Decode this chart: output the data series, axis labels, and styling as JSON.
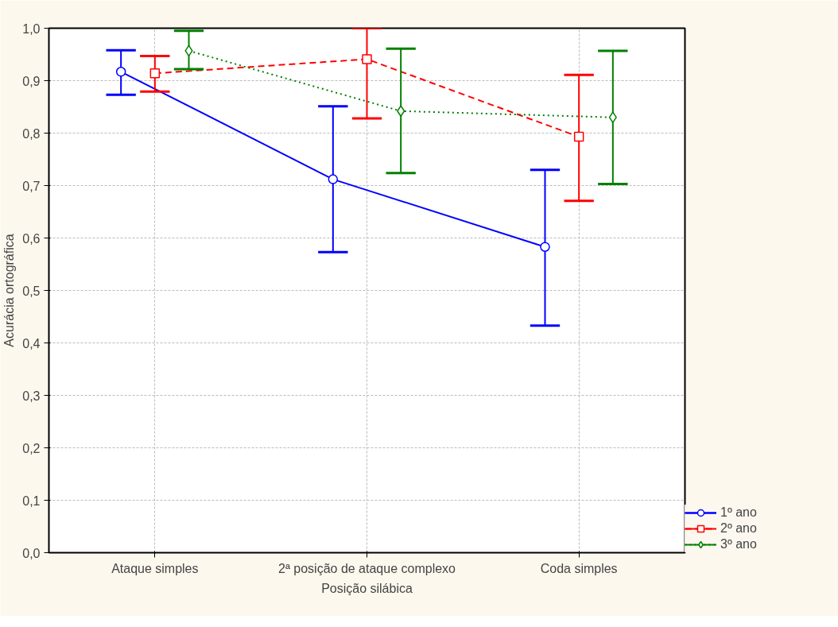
{
  "chart_data": {
    "type": "line",
    "xlabel": "Posição silábica",
    "ylabel": "Acurácia ortográfica",
    "categories": [
      "Ataque simples",
      "2ª posição de ataque complexo",
      "Coda simples"
    ],
    "series": [
      {
        "name": "1º ano",
        "color": "#0000ff",
        "marker": "circle",
        "line_style": "solid",
        "values": [
          0.917,
          0.712,
          0.583
        ],
        "errors": [
          [
            0.873,
            0.958
          ],
          [
            0.573,
            0.851
          ],
          [
            0.433,
            0.73
          ]
        ]
      },
      {
        "name": "2º ano",
        "color": "#ff0000",
        "marker": "square",
        "line_style": "dashed",
        "values": [
          0.914,
          0.941,
          0.793
        ],
        "errors": [
          [
            0.879,
            0.947
          ],
          [
            0.828,
            1.0
          ],
          [
            0.671,
            0.911
          ]
        ]
      },
      {
        "name": "3º ano",
        "color": "#008000",
        "marker": "diamond",
        "line_style": "dotted",
        "values": [
          0.957,
          0.842,
          0.83
        ],
        "errors": [
          [
            0.922,
            0.995
          ],
          [
            0.724,
            0.961
          ],
          [
            0.703,
            0.957
          ]
        ]
      }
    ],
    "ylim": [
      0,
      1
    ],
    "yticks": [
      {
        "value": 0,
        "label": "0,0"
      },
      {
        "value": 0.1,
        "label": "0,1"
      },
      {
        "value": 0.2,
        "label": "0,2"
      },
      {
        "value": 0.3,
        "label": "0,3"
      },
      {
        "value": 0.4,
        "label": "0,4"
      },
      {
        "value": 0.5,
        "label": "0,5"
      },
      {
        "value": 0.6,
        "label": "0,6"
      },
      {
        "value": 0.7,
        "label": "0,7"
      },
      {
        "value": 0.8,
        "label": "0,8"
      },
      {
        "value": 0.9,
        "label": "0,9"
      },
      {
        "value": 1.0,
        "label": "1,0"
      }
    ],
    "grid": true,
    "legend": "bottom right"
  }
}
